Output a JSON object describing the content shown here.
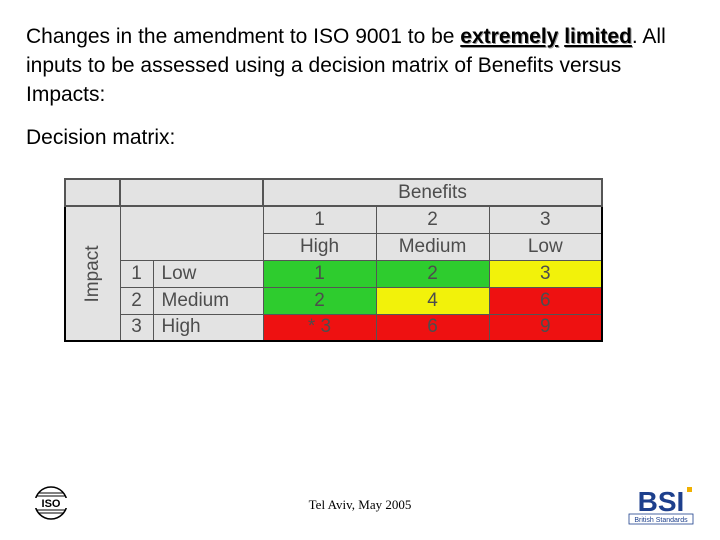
{
  "intro": {
    "part1": "Changes in the amendment to ISO 9001 to be ",
    "emph1": "extremely",
    "space": " ",
    "emph2": "limited",
    "part2": ". All inputs to be assessed using a decision matrix of Benefits versus Impacts:"
  },
  "matrix_label": "Decision matrix:",
  "matrix": {
    "benefits_header": "Benefits",
    "impact_header": "Impact",
    "benefit_numbers": [
      "1",
      "2",
      "3"
    ],
    "benefit_levels": [
      "High",
      "Medium",
      "Low"
    ],
    "rows": [
      {
        "num": "1",
        "label": "Low",
        "cells": [
          "1",
          "2",
          "3"
        ]
      },
      {
        "num": "2",
        "label": "Medium",
        "cells": [
          "2",
          "4",
          "6"
        ]
      },
      {
        "num": "3",
        "label": "High",
        "cells": [
          "* 3",
          "6",
          "9"
        ]
      }
    ],
    "colors": {
      "green": "#2ecc2e",
      "yellow": "#f2f20a",
      "red": "#ee1111"
    }
  },
  "footer": "Tel Aviv, May 2005",
  "logos": {
    "left": "ISO",
    "right_main": "BSI",
    "right_sub": "British Standards"
  }
}
